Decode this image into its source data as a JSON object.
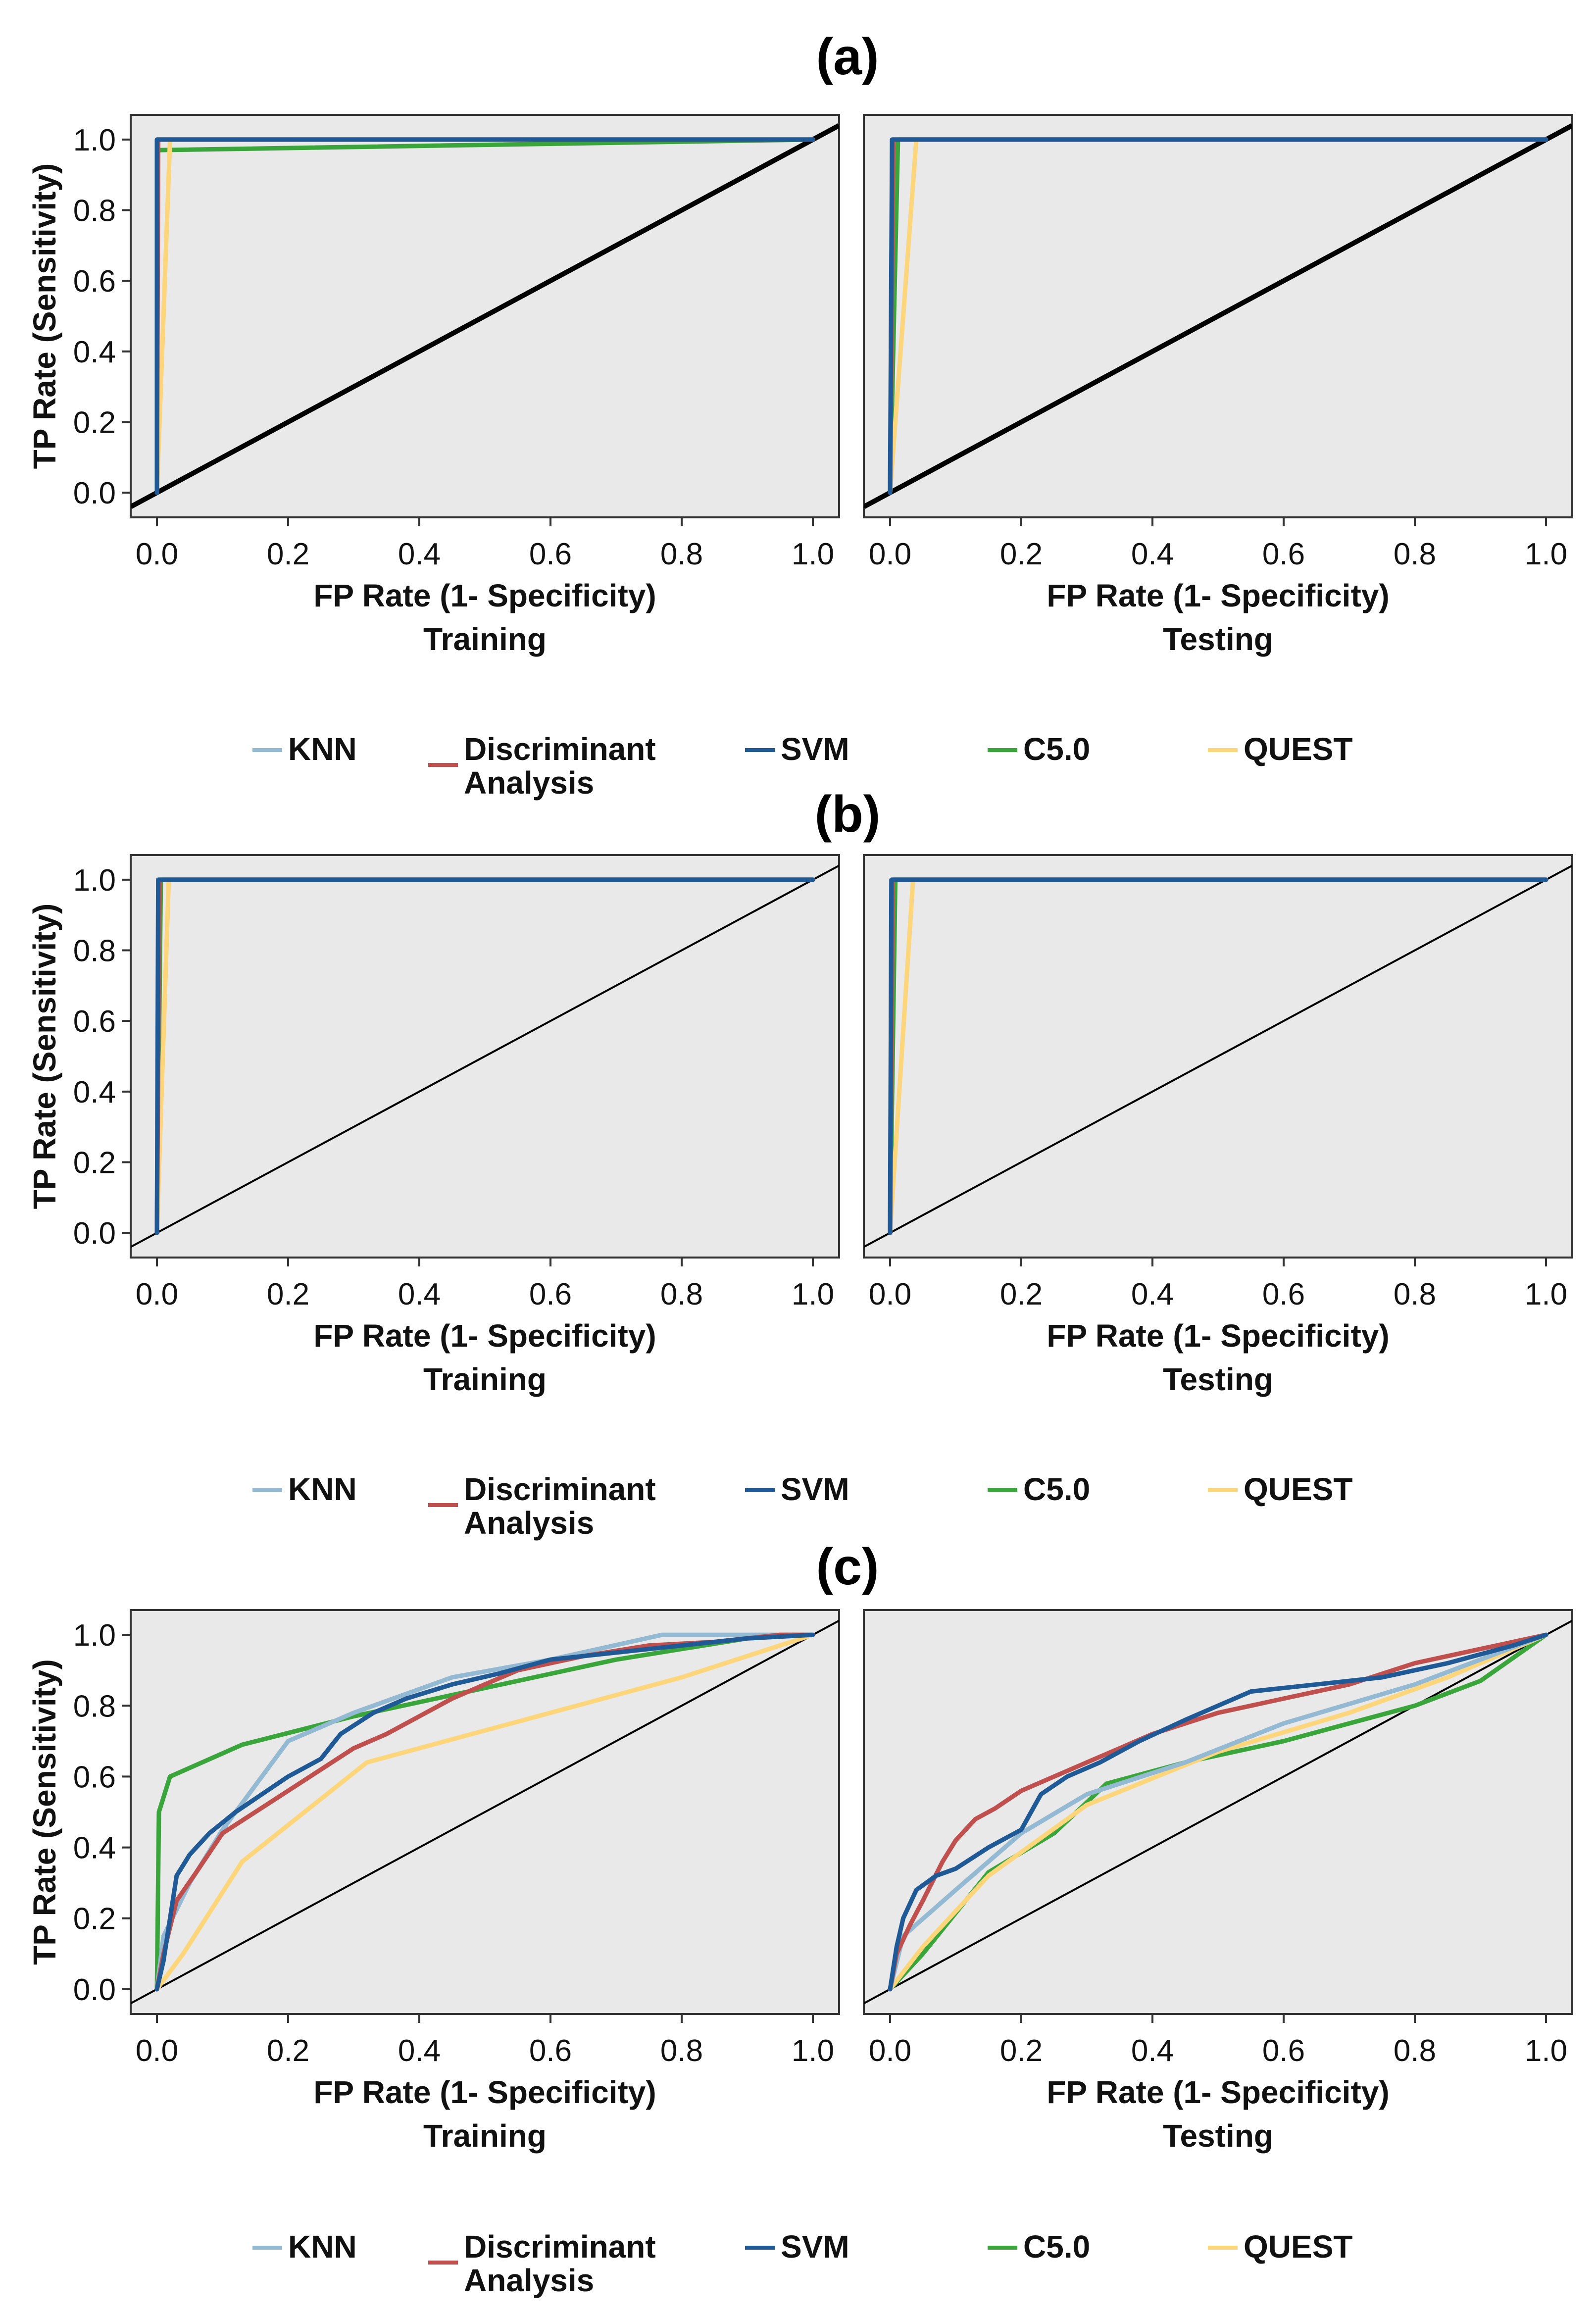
{
  "figure": {
    "panel_labels": [
      "(a)",
      "(b)",
      "(c)"
    ],
    "legend": [
      {
        "name": "KNN",
        "color": "#93b9d3"
      },
      {
        "name": "Discriminant Analysis",
        "lines": [
          "Discriminant",
          "Analysis"
        ],
        "color": "#c0504d"
      },
      {
        "name": "SVM",
        "color": "#1f5a96"
      },
      {
        "name": "C5.0",
        "color": "#3aa53a"
      },
      {
        "name": "QUEST",
        "color": "#fdd57a"
      }
    ],
    "colors": {
      "plot_bg": "#e9e9e9",
      "frame": "#333333",
      "diagonal": "#000000"
    }
  },
  "chart_data": [
    {
      "type": "line",
      "panel": "(a)",
      "title": "Training",
      "xlabel": "FP Rate (1- Specificity)",
      "ylabel": "TP Rate (Sensitivity)",
      "xlim": [
        -0.04,
        1.04
      ],
      "ylim": [
        -0.07,
        1.07
      ],
      "xticks": [
        "0.0",
        "0.2",
        "0.4",
        "0.6",
        "0.8",
        "1.0"
      ],
      "yticks": [
        "0.0",
        "0.2",
        "0.4",
        "0.6",
        "0.8",
        "1.0"
      ],
      "diagonal_width": "thick",
      "series": [
        {
          "name": "KNN",
          "points": [
            [
              0,
              0
            ],
            [
              0,
              1
            ],
            [
              1,
              1
            ]
          ]
        },
        {
          "name": "Discriminant Analysis",
          "points": [
            [
              0,
              0
            ],
            [
              0.002,
              1
            ],
            [
              1,
              1
            ]
          ]
        },
        {
          "name": "SVM",
          "points": [
            [
              0,
              0
            ],
            [
              0,
              1
            ],
            [
              1,
              1
            ]
          ]
        },
        {
          "name": "C5.0",
          "points": [
            [
              0,
              0
            ],
            [
              0,
              0.97
            ],
            [
              1,
              1
            ]
          ]
        },
        {
          "name": "QUEST",
          "points": [
            [
              0,
              0
            ],
            [
              0.02,
              1
            ],
            [
              1,
              1
            ]
          ]
        }
      ]
    },
    {
      "type": "line",
      "panel": "(a)",
      "title": "Testing",
      "xlabel": "FP Rate (1- Specificity)",
      "ylabel": "",
      "xlim": [
        -0.04,
        1.04
      ],
      "ylim": [
        -0.07,
        1.07
      ],
      "xticks": [
        "0.0",
        "0.2",
        "0.4",
        "0.6",
        "0.8",
        "1.0"
      ],
      "yticks": [],
      "diagonal_width": "thick",
      "series": [
        {
          "name": "KNN",
          "points": [
            [
              0,
              0
            ],
            [
              0.005,
              1
            ],
            [
              1,
              1
            ]
          ]
        },
        {
          "name": "Discriminant Analysis",
          "points": [
            [
              0,
              0
            ],
            [
              0.005,
              1
            ],
            [
              1,
              1
            ]
          ]
        },
        {
          "name": "SVM",
          "points": [
            [
              0,
              0
            ],
            [
              0.003,
              1
            ],
            [
              1,
              1
            ]
          ]
        },
        {
          "name": "C5.0",
          "points": [
            [
              0,
              0
            ],
            [
              0.012,
              1
            ],
            [
              1,
              1
            ]
          ]
        },
        {
          "name": "QUEST",
          "points": [
            [
              0,
              0
            ],
            [
              0.04,
              1
            ],
            [
              1,
              1
            ]
          ]
        }
      ]
    },
    {
      "type": "line",
      "panel": "(b)",
      "title": "Training",
      "xlabel": "FP Rate (1- Specificity)",
      "ylabel": "TP Rate (Sensitivity)",
      "xlim": [
        -0.04,
        1.04
      ],
      "ylim": [
        -0.07,
        1.07
      ],
      "xticks": [
        "0.0",
        "0.2",
        "0.4",
        "0.6",
        "0.8",
        "1.0"
      ],
      "yticks": [
        "0.0",
        "0.2",
        "0.4",
        "0.6",
        "0.8",
        "1.0"
      ],
      "diagonal_width": "thin",
      "series": [
        {
          "name": "KNN",
          "points": [
            [
              0,
              0
            ],
            [
              0.003,
              1
            ],
            [
              1,
              1
            ]
          ]
        },
        {
          "name": "Discriminant Analysis",
          "points": [
            [
              0,
              0
            ],
            [
              0.004,
              1
            ],
            [
              1,
              1
            ]
          ]
        },
        {
          "name": "SVM",
          "points": [
            [
              0,
              0
            ],
            [
              0.002,
              1
            ],
            [
              1,
              1
            ]
          ]
        },
        {
          "name": "C5.0",
          "points": [
            [
              0,
              0
            ],
            [
              0.006,
              1
            ],
            [
              1,
              1
            ]
          ]
        },
        {
          "name": "QUEST",
          "points": [
            [
              0,
              0
            ],
            [
              0.018,
              1
            ],
            [
              1,
              1
            ]
          ]
        }
      ]
    },
    {
      "type": "line",
      "panel": "(b)",
      "title": "Testing",
      "xlabel": "FP Rate (1- Specificity)",
      "ylabel": "",
      "xlim": [
        -0.04,
        1.04
      ],
      "ylim": [
        -0.07,
        1.07
      ],
      "xticks": [
        "0.0",
        "0.2",
        "0.4",
        "0.6",
        "0.8",
        "1.0"
      ],
      "yticks": [],
      "diagonal_width": "thin",
      "series": [
        {
          "name": "KNN",
          "points": [
            [
              0,
              0
            ],
            [
              0.004,
              1
            ],
            [
              1,
              1
            ]
          ]
        },
        {
          "name": "Discriminant Analysis",
          "points": [
            [
              0,
              0
            ],
            [
              0.004,
              1
            ],
            [
              1,
              1
            ]
          ]
        },
        {
          "name": "SVM",
          "points": [
            [
              0,
              0
            ],
            [
              0.002,
              1
            ],
            [
              1,
              1
            ]
          ]
        },
        {
          "name": "C5.0",
          "points": [
            [
              0,
              0
            ],
            [
              0.008,
              1
            ],
            [
              1,
              1
            ]
          ]
        },
        {
          "name": "QUEST",
          "points": [
            [
              0,
              0
            ],
            [
              0.035,
              1
            ],
            [
              1,
              1
            ]
          ]
        }
      ]
    },
    {
      "type": "line",
      "panel": "(c)",
      "title": "Training",
      "xlabel": "FP Rate (1- Specificity)",
      "ylabel": "TP Rate (Sensitivity)",
      "xlim": [
        -0.04,
        1.04
      ],
      "ylim": [
        -0.07,
        1.07
      ],
      "xticks": [
        "0.0",
        "0.2",
        "0.4",
        "0.6",
        "0.8",
        "1.0"
      ],
      "yticks": [
        "0.0",
        "0.2",
        "0.4",
        "0.6",
        "0.8",
        "1.0"
      ],
      "diagonal_width": "thin",
      "series": [
        {
          "name": "KNN",
          "points": [
            [
              0,
              0
            ],
            [
              0.01,
              0.15
            ],
            [
              0.05,
              0.3
            ],
            [
              0.1,
              0.45
            ],
            [
              0.2,
              0.7
            ],
            [
              0.3,
              0.78
            ],
            [
              0.45,
              0.88
            ],
            [
              0.6,
              0.93
            ],
            [
              0.77,
              1
            ],
            [
              1,
              1
            ]
          ]
        },
        {
          "name": "Discriminant Analysis",
          "points": [
            [
              0,
              0
            ],
            [
              0.01,
              0.1
            ],
            [
              0.03,
              0.25
            ],
            [
              0.06,
              0.33
            ],
            [
              0.1,
              0.44
            ],
            [
              0.15,
              0.5
            ],
            [
              0.2,
              0.56
            ],
            [
              0.25,
              0.62
            ],
            [
              0.3,
              0.68
            ],
            [
              0.35,
              0.72
            ],
            [
              0.4,
              0.77
            ],
            [
              0.45,
              0.82
            ],
            [
              0.5,
              0.86
            ],
            [
              0.55,
              0.9
            ],
            [
              0.65,
              0.94
            ],
            [
              0.75,
              0.97
            ],
            [
              0.85,
              0.98
            ],
            [
              0.95,
              1
            ],
            [
              1,
              1
            ]
          ]
        },
        {
          "name": "SVM",
          "points": [
            [
              0,
              0
            ],
            [
              0.01,
              0.08
            ],
            [
              0.02,
              0.2
            ],
            [
              0.03,
              0.32
            ],
            [
              0.05,
              0.38
            ],
            [
              0.08,
              0.44
            ],
            [
              0.12,
              0.5
            ],
            [
              0.16,
              0.55
            ],
            [
              0.2,
              0.6
            ],
            [
              0.25,
              0.65
            ],
            [
              0.28,
              0.72
            ],
            [
              0.33,
              0.78
            ],
            [
              0.38,
              0.82
            ],
            [
              0.45,
              0.86
            ],
            [
              0.52,
              0.89
            ],
            [
              0.6,
              0.93
            ],
            [
              0.7,
              0.95
            ],
            [
              0.8,
              0.97
            ],
            [
              0.9,
              0.99
            ],
            [
              1,
              1
            ]
          ]
        },
        {
          "name": "C5.0",
          "points": [
            [
              0,
              0
            ],
            [
              0.003,
              0.5
            ],
            [
              0.02,
              0.6
            ],
            [
              0.13,
              0.69
            ],
            [
              0.3,
              0.77
            ],
            [
              0.5,
              0.85
            ],
            [
              0.7,
              0.93
            ],
            [
              0.9,
              0.99
            ],
            [
              1,
              1
            ]
          ]
        },
        {
          "name": "QUEST",
          "points": [
            [
              0,
              0
            ],
            [
              0.04,
              0.1
            ],
            [
              0.13,
              0.36
            ],
            [
              0.32,
              0.64
            ],
            [
              0.6,
              0.78
            ],
            [
              0.8,
              0.88
            ],
            [
              1,
              1
            ]
          ]
        }
      ]
    },
    {
      "type": "line",
      "panel": "(c)",
      "title": "Testing",
      "xlabel": "FP Rate (1- Specificity)",
      "ylabel": "",
      "xlim": [
        -0.04,
        1.04
      ],
      "ylim": [
        -0.07,
        1.07
      ],
      "xticks": [
        "0.0",
        "0.2",
        "0.4",
        "0.6",
        "0.8",
        "1.0"
      ],
      "yticks": [],
      "diagonal_width": "thin",
      "series": [
        {
          "name": "KNN",
          "points": [
            [
              0,
              0
            ],
            [
              0.02,
              0.15
            ],
            [
              0.1,
              0.28
            ],
            [
              0.2,
              0.44
            ],
            [
              0.3,
              0.55
            ],
            [
              0.45,
              0.64
            ],
            [
              0.6,
              0.75
            ],
            [
              0.8,
              0.86
            ],
            [
              1,
              1
            ]
          ]
        },
        {
          "name": "Discriminant Analysis",
          "points": [
            [
              0,
              0
            ],
            [
              0.01,
              0.1
            ],
            [
              0.03,
              0.18
            ],
            [
              0.05,
              0.25
            ],
            [
              0.08,
              0.36
            ],
            [
              0.1,
              0.42
            ],
            [
              0.13,
              0.48
            ],
            [
              0.16,
              0.51
            ],
            [
              0.2,
              0.56
            ],
            [
              0.25,
              0.6
            ],
            [
              0.3,
              0.64
            ],
            [
              0.35,
              0.68
            ],
            [
              0.4,
              0.72
            ],
            [
              0.45,
              0.75
            ],
            [
              0.5,
              0.78
            ],
            [
              0.55,
              0.8
            ],
            [
              0.6,
              0.82
            ],
            [
              0.7,
              0.86
            ],
            [
              0.8,
              0.92
            ],
            [
              0.9,
              0.96
            ],
            [
              1,
              1
            ]
          ]
        },
        {
          "name": "SVM",
          "points": [
            [
              0,
              0
            ],
            [
              0.01,
              0.12
            ],
            [
              0.02,
              0.2
            ],
            [
              0.04,
              0.28
            ],
            [
              0.07,
              0.32
            ],
            [
              0.1,
              0.34
            ],
            [
              0.15,
              0.4
            ],
            [
              0.2,
              0.45
            ],
            [
              0.23,
              0.55
            ],
            [
              0.27,
              0.6
            ],
            [
              0.32,
              0.64
            ],
            [
              0.38,
              0.7
            ],
            [
              0.45,
              0.76
            ],
            [
              0.5,
              0.8
            ],
            [
              0.55,
              0.84
            ],
            [
              0.65,
              0.86
            ],
            [
              0.75,
              0.88
            ],
            [
              0.85,
              0.92
            ],
            [
              0.95,
              0.97
            ],
            [
              1,
              1
            ]
          ]
        },
        {
          "name": "C5.0",
          "points": [
            [
              0,
              0
            ],
            [
              0.05,
              0.1
            ],
            [
              0.15,
              0.33
            ],
            [
              0.25,
              0.44
            ],
            [
              0.33,
              0.58
            ],
            [
              0.45,
              0.64
            ],
            [
              0.6,
              0.7
            ],
            [
              0.8,
              0.8
            ],
            [
              0.9,
              0.87
            ],
            [
              1,
              1
            ]
          ]
        },
        {
          "name": "QUEST",
          "points": [
            [
              0,
              0
            ],
            [
              0.05,
              0.12
            ],
            [
              0.15,
              0.32
            ],
            [
              0.3,
              0.52
            ],
            [
              0.5,
              0.67
            ],
            [
              0.7,
              0.78
            ],
            [
              0.85,
              0.88
            ],
            [
              1,
              1
            ]
          ]
        }
      ]
    }
  ]
}
